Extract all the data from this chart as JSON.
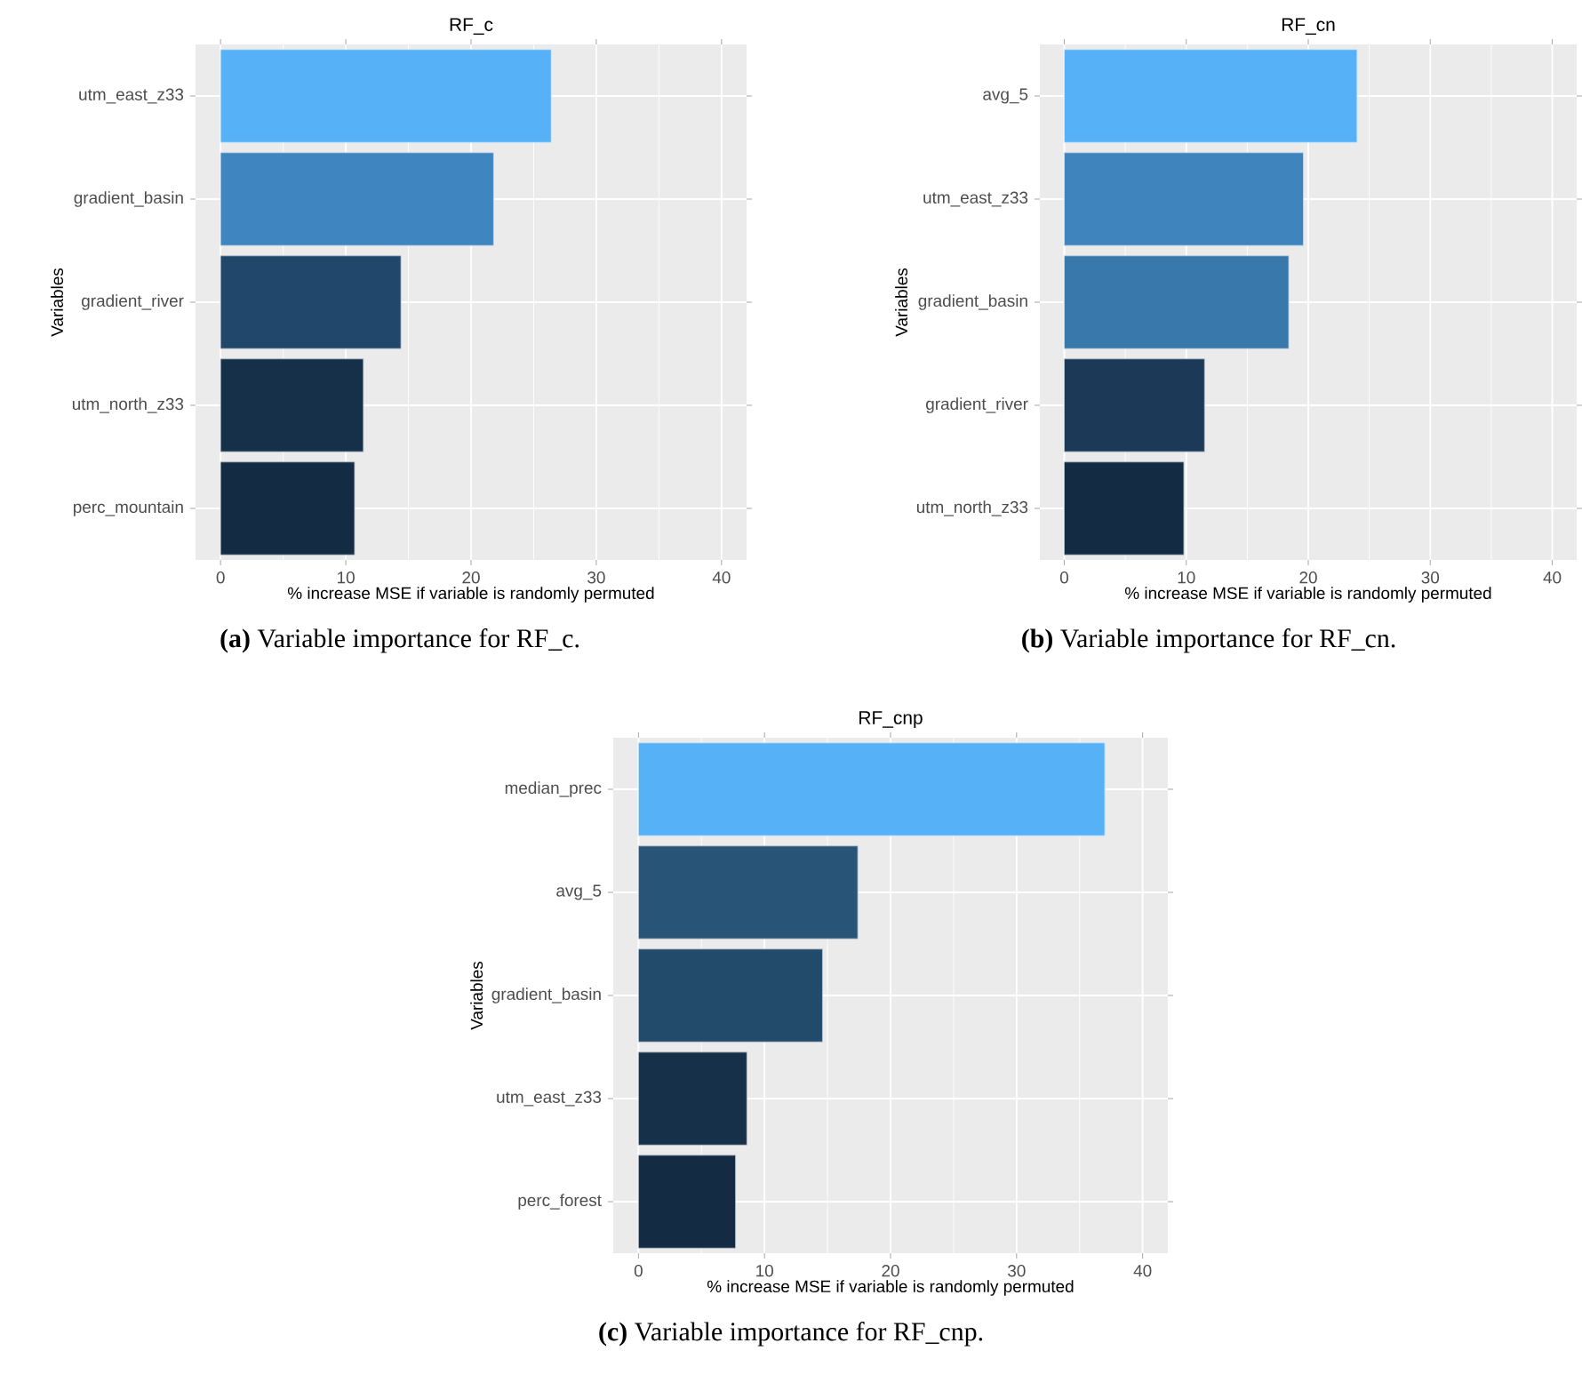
{
  "chart_data": [
    {
      "type": "bar",
      "orientation": "horizontal",
      "title": "RF_c",
      "xlabel": "% increase MSE if variable is randomly permuted",
      "ylabel": "Variables",
      "categories": [
        "utm_east_z33",
        "gradient_basin",
        "gradient_river",
        "utm_north_z33",
        "perc_mountain"
      ],
      "values": [
        26.4,
        21.8,
        14.4,
        11.4,
        10.7
      ],
      "colors": [
        "#56b1f7",
        "#3f85c0",
        "#21486a",
        "#17304a",
        "#132b43"
      ],
      "xlim": [
        -2,
        42
      ],
      "xticks": [
        0,
        10,
        20,
        30,
        40
      ],
      "grid": true,
      "annotations": [
        "**(a)** Variable importance for RF_c."
      ]
    },
    {
      "type": "bar",
      "orientation": "horizontal",
      "title": "RF_cn",
      "xlabel": "% increase MSE if variable is randomly permuted",
      "ylabel": "Variables",
      "categories": [
        "avg_5",
        "utm_east_z33",
        "gradient_basin",
        "gradient_river",
        "utm_north_z33"
      ],
      "values": [
        24.0,
        19.6,
        18.4,
        11.5,
        9.8
      ],
      "colors": [
        "#56b1f7",
        "#3f84bd",
        "#3878ab",
        "#1c3a57",
        "#132b43"
      ],
      "xlim": [
        -2,
        42
      ],
      "xticks": [
        0,
        10,
        20,
        30,
        40
      ],
      "grid": true,
      "annotations": [
        "**(b)** Variable importance for RF_cn."
      ]
    },
    {
      "type": "bar",
      "orientation": "horizontal",
      "title": "RF_cnp",
      "xlabel": "% increase MSE if variable is randomly permuted",
      "ylabel": "Variables",
      "categories": [
        "median_prec",
        "avg_5",
        "gradient_basin",
        "utm_east_z33",
        "perc_forest"
      ],
      "values": [
        37.0,
        17.4,
        14.6,
        8.6,
        7.7
      ],
      "colors": [
        "#56b1f7",
        "#285577",
        "#214a6b",
        "#173049",
        "#132b43"
      ],
      "xlim": [
        -2,
        42
      ],
      "xticks": [
        0,
        10,
        20,
        30,
        40
      ],
      "grid": true,
      "annotations": [
        "**(c)** Variable importance for RF_cnp."
      ]
    }
  ]
}
